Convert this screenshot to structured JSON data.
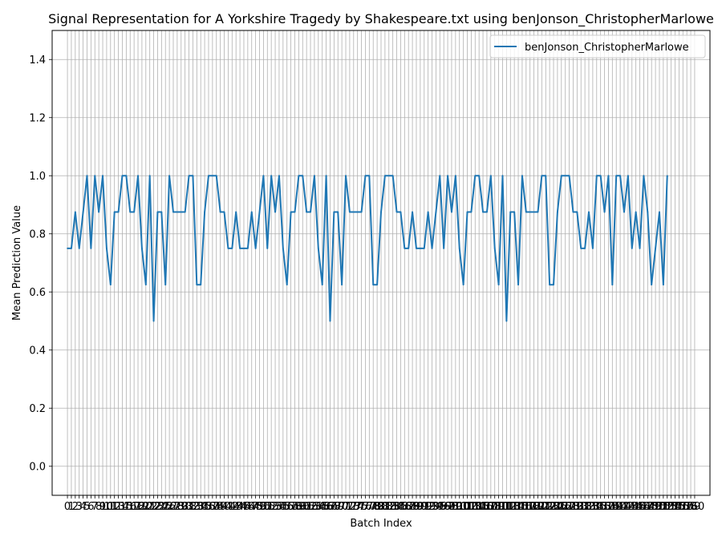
{
  "chart_data": {
    "type": "line",
    "title": "Signal Representation for A Yorkshire Tragedy by Shakespeare.txt using benJonson_ChristopherMarlowe",
    "xlabel": "Batch Index",
    "ylabel": "Mean Prediction Value",
    "xlim": [
      -3.9,
      163.9
    ],
    "ylim": [
      -0.1,
      1.5
    ],
    "yticks": [
      0.0,
      0.2,
      0.4,
      0.6,
      0.8,
      1.0,
      1.2,
      1.4
    ],
    "ytick_labels": [
      "0.0",
      "0.2",
      "0.4",
      "0.6",
      "0.8",
      "1.0",
      "1.2",
      "1.4"
    ],
    "x_tick_count": 161,
    "grid": true,
    "legend": "upper-right",
    "series": [
      {
        "name": "benJonson_ChristopherMarlowe",
        "color": "#1f77b4",
        "values": [
          0.75,
          0.75,
          0.875,
          0.75,
          0.875,
          1.0,
          0.75,
          1.0,
          0.875,
          1.0,
          0.75,
          0.625,
          0.875,
          0.875,
          1.0,
          1.0,
          0.875,
          0.875,
          1.0,
          0.75,
          0.625,
          1.0,
          0.5,
          0.875,
          0.875,
          0.625,
          1.0,
          0.875,
          0.875,
          0.875,
          0.875,
          1.0,
          1.0,
          0.625,
          0.625,
          0.875,
          1.0,
          1.0,
          1.0,
          0.875,
          0.875,
          0.75,
          0.75,
          0.875,
          0.75,
          0.75,
          0.75,
          0.875,
          0.75,
          0.875,
          1.0,
          0.75,
          1.0,
          0.875,
          1.0,
          0.75,
          0.625,
          0.875,
          0.875,
          1.0,
          1.0,
          0.875,
          0.875,
          1.0,
          0.75,
          0.625,
          1.0,
          0.5,
          0.875,
          0.875,
          0.625,
          1.0,
          0.875,
          0.875,
          0.875,
          0.875,
          1.0,
          1.0,
          0.625,
          0.625,
          0.875,
          1.0,
          1.0,
          1.0,
          0.875,
          0.875,
          0.75,
          0.75,
          0.875,
          0.75,
          0.75,
          0.75,
          0.875,
          0.75,
          0.875,
          1.0,
          0.75,
          1.0,
          0.875,
          1.0,
          0.75,
          0.625,
          0.875,
          0.875,
          1.0,
          1.0,
          0.875,
          0.875,
          1.0,
          0.75,
          0.625,
          1.0,
          0.5,
          0.875,
          0.875,
          0.625,
          1.0,
          0.875,
          0.875,
          0.875,
          0.875,
          1.0,
          1.0,
          0.625,
          0.625,
          0.875,
          1.0,
          1.0,
          1.0,
          0.875,
          0.875,
          0.75,
          0.75,
          0.875,
          0.75,
          1.0,
          1.0,
          0.875,
          1.0,
          0.625,
          1.0,
          1.0,
          0.875,
          1.0,
          0.75,
          0.875,
          0.75,
          1.0,
          0.875,
          0.625,
          0.75,
          0.875,
          0.625,
          1.0
        ]
      }
    ]
  }
}
